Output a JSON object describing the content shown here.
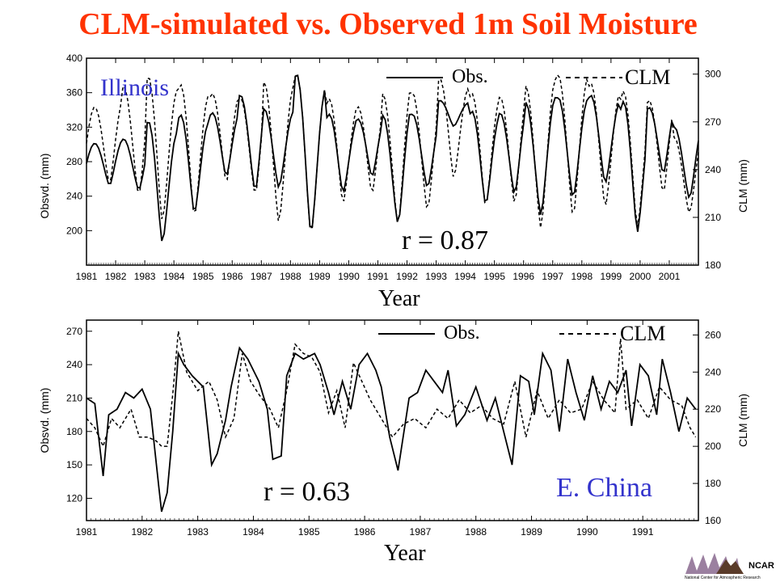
{
  "title": "CLM-simulated vs. Observed 1m Soil Moisture",
  "chart_data": [
    {
      "type": "line",
      "region": "Illinois",
      "correlation": "r = 0.87",
      "xlabel": "Year",
      "ylabel_left": "Obsvd. (mm)",
      "ylabel_right": "CLM (mm)",
      "xlim": [
        1981,
        2002
      ],
      "ylim_left": [
        160,
        400
      ],
      "ylim_right": [
        180,
        310
      ],
      "yticks_left": [
        200,
        240,
        280,
        320,
        360,
        400
      ],
      "yticks_right": [
        180,
        210,
        240,
        270,
        300
      ],
      "xtick_labels": [
        "1981",
        "1982",
        "1983",
        "1984",
        "1985",
        "1986",
        "1987",
        "1988",
        "1989",
        "1990",
        "1991",
        "1992",
        "1993",
        "1994",
        "1995",
        "1996",
        "1997",
        "1998",
        "1999",
        "2000",
        "2001"
      ],
      "legend": [
        {
          "label": "Obs.",
          "style": "solid"
        },
        {
          "label": "CLM",
          "style": "dashed"
        }
      ],
      "series": [
        {
          "name": "Obs.",
          "axis": "left",
          "year_min": [
            1981.8,
            1982.8,
            1983.6,
            1984.7,
            1985.8,
            1986.8,
            1987.6,
            1988.7,
            1989.8,
            1990.8,
            1991.7,
            1992.7,
            1993.6,
            1994.7,
            1995.7,
            1996.6,
            1997.7,
            1998.8,
            1999.9,
            2000.8,
            2001.7
          ],
          "min": [
            250,
            250,
            185,
            212,
            255,
            242,
            255,
            200,
            240,
            255,
            210,
            255,
            320,
            220,
            235,
            225,
            245,
            258,
            195,
            258,
            240
          ],
          "max": [
            305,
            305,
            320,
            335,
            342,
            365,
            335,
            370,
            333,
            335,
            336,
            330,
            350,
            342,
            345,
            345,
            347,
            350,
            344,
            350,
            320
          ]
        },
        {
          "name": "CLM",
          "axis": "right",
          "year_min": [
            1981.8,
            1982.8,
            1983.6,
            1984.7,
            1985.8,
            1986.8,
            1987.6,
            1988.7,
            1989.8,
            1990.8,
            1991.7,
            1992.7,
            1993.6,
            1994.7,
            1995.7,
            1996.6,
            1997.7,
            1998.8,
            1999.9,
            2000.8,
            2001.7
          ],
          "min": [
            229,
            227,
            207,
            204,
            226,
            222,
            212,
            201,
            216,
            219,
            207,
            219,
            233,
            210,
            213,
            208,
            216,
            219,
            202,
            219,
            214
          ],
          "max": [
            283,
            291,
            294,
            294,
            292,
            289,
            289,
            294,
            283,
            284,
            289,
            284,
            295,
            290,
            292,
            290,
            294,
            289,
            286,
            289,
            260
          ]
        }
      ]
    },
    {
      "type": "line",
      "region": "E. China",
      "correlation": "r = 0.63",
      "xlabel": "Year",
      "ylabel_left": "Obsvd. (mm)",
      "ylabel_right": "CLM (mm)",
      "xlim": [
        1981,
        1992
      ],
      "ylim_left": [
        100,
        280
      ],
      "ylim_right": [
        160,
        268
      ],
      "yticks_left": [
        120,
        150,
        180,
        210,
        240,
        270
      ],
      "yticks_right": [
        160,
        180,
        200,
        220,
        240,
        260
      ],
      "xtick_labels": [
        "1981",
        "1982",
        "1983",
        "1984",
        "1985",
        "1986",
        "1987",
        "1988",
        "1989",
        "1990",
        "1991"
      ],
      "legend": [
        {
          "label": "Obs.",
          "style": "solid"
        },
        {
          "label": "CLM",
          "style": "dashed"
        }
      ],
      "series": [
        {
          "name": "Obs.",
          "axis": "left",
          "x": [
            1981.0,
            1981.15,
            1981.3,
            1981.4,
            1981.55,
            1981.7,
            1981.85,
            1982.0,
            1982.15,
            1982.3,
            1982.35,
            1982.45,
            1982.55,
            1982.65,
            1982.75,
            1982.9,
            1983.1,
            1983.25,
            1983.35,
            1983.5,
            1983.6,
            1983.75,
            1983.9,
            1984.1,
            1984.25,
            1984.35,
            1984.5,
            1984.6,
            1984.75,
            1984.9,
            1985.1,
            1985.2,
            1985.35,
            1985.45,
            1985.6,
            1985.75,
            1985.9,
            1986.05,
            1986.2,
            1986.3,
            1986.45,
            1986.6,
            1986.8,
            1986.95,
            1987.1,
            1987.25,
            1987.4,
            1987.5,
            1987.65,
            1987.8,
            1988.0,
            1988.2,
            1988.35,
            1988.5,
            1988.65,
            1988.8,
            1988.95,
            1989.05,
            1989.2,
            1989.35,
            1989.5,
            1989.65,
            1989.8,
            1989.95,
            1990.1,
            1990.25,
            1990.4,
            1990.55,
            1990.7,
            1990.8,
            1990.95,
            1991.1,
            1991.25,
            1991.35,
            1991.5,
            1991.65,
            1991.8,
            1991.95
          ],
          "y": [
            210,
            205,
            140,
            195,
            200,
            215,
            210,
            218,
            200,
            130,
            108,
            125,
            180,
            250,
            240,
            230,
            220,
            150,
            160,
            190,
            220,
            255,
            245,
            225,
            200,
            155,
            158,
            230,
            250,
            245,
            250,
            240,
            215,
            195,
            225,
            200,
            240,
            250,
            235,
            220,
            175,
            145,
            210,
            215,
            235,
            225,
            215,
            235,
            185,
            195,
            220,
            190,
            210,
            180,
            150,
            230,
            225,
            195,
            250,
            235,
            180,
            245,
            215,
            190,
            230,
            200,
            225,
            215,
            235,
            185,
            240,
            230,
            195,
            245,
            215,
            180,
            210,
            200
          ]
        },
        {
          "name": "CLM",
          "axis": "right",
          "x": [
            1981.0,
            1981.15,
            1981.3,
            1981.45,
            1981.6,
            1981.8,
            1981.95,
            1982.1,
            1982.25,
            1982.35,
            1982.45,
            1982.55,
            1982.65,
            1982.8,
            1983.0,
            1983.2,
            1983.35,
            1983.5,
            1983.65,
            1983.8,
            1983.95,
            1984.1,
            1984.3,
            1984.45,
            1984.6,
            1984.75,
            1984.9,
            1985.05,
            1985.2,
            1985.35,
            1985.5,
            1985.65,
            1985.8,
            1985.95,
            1986.1,
            1986.3,
            1986.5,
            1986.7,
            1986.9,
            1987.1,
            1987.3,
            1987.5,
            1987.7,
            1987.9,
            1988.1,
            1988.3,
            1988.5,
            1988.7,
            1988.9,
            1989.1,
            1989.3,
            1989.5,
            1989.7,
            1989.9,
            1990.1,
            1990.3,
            1990.5,
            1990.6,
            1990.7,
            1990.9,
            1991.1,
            1991.3,
            1991.5,
            1991.7,
            1991.85,
            1991.95
          ],
          "y": [
            215,
            210,
            200,
            215,
            210,
            220,
            205,
            205,
            203,
            200,
            200,
            228,
            262,
            240,
            230,
            235,
            225,
            205,
            215,
            250,
            235,
            228,
            220,
            210,
            230,
            255,
            250,
            248,
            240,
            218,
            230,
            210,
            245,
            235,
            225,
            215,
            205,
            212,
            215,
            210,
            220,
            215,
            225,
            218,
            222,
            215,
            212,
            235,
            205,
            230,
            215,
            225,
            218,
            220,
            235,
            225,
            218,
            258,
            220,
            225,
            215,
            232,
            225,
            222,
            210,
            205
          ]
        }
      ]
    }
  ],
  "logo": {
    "text": "NCAR",
    "subtitle": "National Center for Atmospheric Research",
    "color_dark": "#5a3b2a",
    "color_mid": "#8a6a8f"
  }
}
